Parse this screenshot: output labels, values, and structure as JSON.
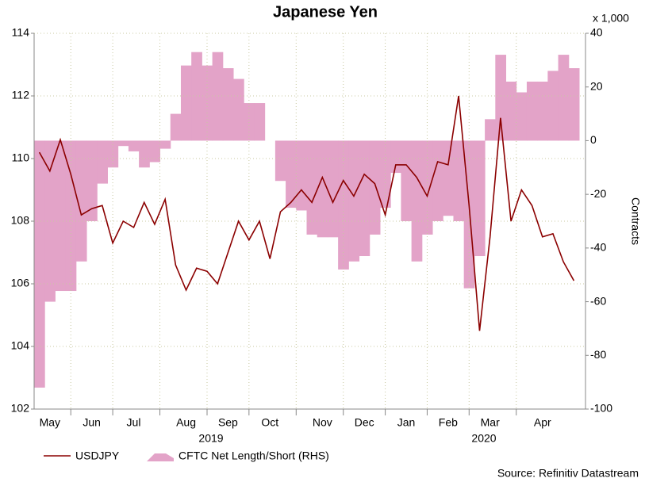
{
  "chart_data": {
    "type": "bar-line",
    "title": "Japanese Yen",
    "y2_label": "Contracts",
    "y2_unit": "x 1,000",
    "source": "Source: Refinitiv Datastream",
    "year_labels": [
      "2019",
      "2020"
    ],
    "categories": [
      null,
      "May",
      null,
      null,
      null,
      "Jun",
      null,
      null,
      null,
      "Jul",
      null,
      null,
      null,
      null,
      "Aug",
      null,
      null,
      null,
      "Sep",
      null,
      null,
      null,
      "Oct",
      null,
      null,
      null,
      null,
      "Nov",
      null,
      null,
      null,
      "Dec",
      null,
      null,
      null,
      "Jan",
      null,
      null,
      null,
      "Feb",
      null,
      null,
      null,
      "Mar",
      null,
      null,
      null,
      null,
      "Apr",
      null,
      null,
      null
    ],
    "series": [
      {
        "name": "CFTC Net Length/Short (RHS)",
        "type": "bar",
        "axis": "y2",
        "color": "#e3a3c8",
        "values": [
          -92,
          -60,
          -56,
          -56,
          -45,
          -30,
          -16,
          -10,
          -2,
          -4,
          -10,
          -8,
          -3,
          10,
          28,
          33,
          28,
          33,
          27,
          23,
          14,
          14,
          0,
          -15,
          -25,
          -26,
          -35,
          -36,
          -36,
          -48,
          -45,
          -43,
          -35,
          -25,
          -12,
          -30,
          -45,
          -35,
          -30,
          -28,
          -30,
          -55,
          -43,
          8,
          32,
          22,
          18,
          22,
          22,
          26,
          32,
          27
        ]
      },
      {
        "name": "USDJPY",
        "type": "line",
        "color": "#8b0000",
        "values": [
          110.2,
          109.6,
          110.6,
          109.5,
          108.2,
          108.4,
          108.5,
          107.3,
          108.0,
          107.8,
          108.6,
          107.9,
          108.7,
          106.6,
          105.8,
          106.5,
          106.4,
          106.0,
          107.0,
          108.0,
          107.4,
          108.0,
          106.8,
          108.3,
          108.6,
          109.0,
          108.6,
          109.4,
          108.6,
          109.3,
          108.8,
          109.5,
          109.2,
          108.2,
          109.8,
          109.8,
          109.4,
          108.8,
          109.9,
          109.8,
          112.0,
          108.5,
          104.5,
          107.5,
          111.3,
          108.0,
          109.0,
          108.5,
          107.5,
          107.6,
          106.7,
          106.1
        ]
      }
    ],
    "ylim": [
      102,
      114
    ],
    "yticks": [
      102,
      104,
      106,
      108,
      110,
      112,
      114
    ],
    "y2lim": [
      -100,
      40
    ],
    "y2ticks": [
      -100,
      -80,
      -60,
      -40,
      -20,
      0,
      20,
      40
    ],
    "grid": true
  }
}
